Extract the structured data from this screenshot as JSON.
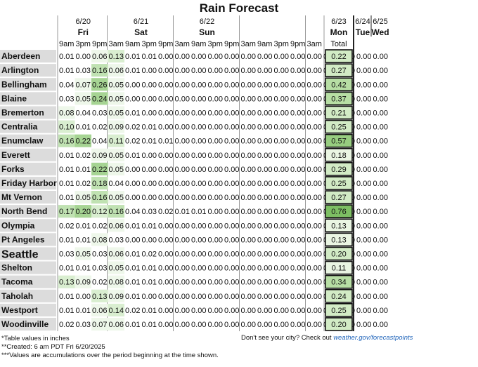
{
  "chart_data": {
    "type": "table",
    "title": "Rain Forecast",
    "days": [
      {
        "date": "6/20",
        "day": "Fri",
        "periods": [
          "9am",
          "3pm",
          "9pm"
        ]
      },
      {
        "date": "6/21",
        "day": "Sat",
        "periods": [
          "3am",
          "9am",
          "3pm",
          "9pm"
        ]
      },
      {
        "date": "6/22",
        "day": "Sun",
        "periods": [
          "3am",
          "9am",
          "3pm",
          "9pm"
        ]
      },
      {
        "date": "",
        "day": "",
        "periods": [
          "3am",
          "9am",
          "3pm",
          "9pm"
        ]
      },
      {
        "date": "",
        "day": "",
        "periods": [
          "3am"
        ]
      }
    ],
    "total_header": {
      "date": "6/23",
      "day": "Mon",
      "label": "Total"
    },
    "extra_days": [
      {
        "date": "6/24",
        "day": "Tue"
      },
      {
        "date": "6/25",
        "day": "Wed"
      }
    ],
    "rows": [
      {
        "city": "Aberdeen",
        "values": [
          "0.01",
          "0.00",
          "0.06",
          "0.13",
          "0.01",
          "0.01",
          "0.00",
          "0.00",
          "0.00",
          "0.00",
          "0.00",
          "0.00",
          "0.00",
          "0.00",
          "0.00",
          "0.00",
          "0.00",
          "0.00",
          "0.00",
          "0.00"
        ],
        "total": "0.22"
      },
      {
        "city": "Arlington",
        "values": [
          "0.01",
          "0.03",
          "0.16",
          "0.06",
          "0.01",
          "0.00",
          "0.00",
          "0.00",
          "0.00",
          "0.00",
          "0.00",
          "0.00",
          "0.00",
          "0.00",
          "0.00",
          "0.00",
          "0.00",
          "0.00",
          "0.00",
          "0.00"
        ],
        "total": "0.27"
      },
      {
        "city": "Bellingham",
        "values": [
          "0.04",
          "0.07",
          "0.26",
          "0.05",
          "0.00",
          "0.00",
          "0.00",
          "0.00",
          "0.00",
          "0.00",
          "0.00",
          "0.00",
          "0.00",
          "0.00",
          "0.00",
          "0.00",
          "0.00",
          "0.00",
          "0.00",
          "0.00"
        ],
        "total": "0.42"
      },
      {
        "city": "Blaine",
        "values": [
          "0.03",
          "0.05",
          "0.24",
          "0.05",
          "0.00",
          "0.00",
          "0.00",
          "0.00",
          "0.00",
          "0.00",
          "0.00",
          "0.00",
          "0.00",
          "0.00",
          "0.00",
          "0.00",
          "0.00",
          "0.00",
          "0.00",
          "0.00"
        ],
        "total": "0.37"
      },
      {
        "city": "Bremerton",
        "values": [
          "0.08",
          "0.04",
          "0.03",
          "0.05",
          "0.01",
          "0.00",
          "0.00",
          "0.00",
          "0.00",
          "0.00",
          "0.00",
          "0.00",
          "0.00",
          "0.00",
          "0.00",
          "0.00",
          "0.00",
          "0.00",
          "0.00",
          "0.00"
        ],
        "total": "0.21"
      },
      {
        "city": "Centralia",
        "values": [
          "0.10",
          "0.01",
          "0.02",
          "0.09",
          "0.02",
          "0.01",
          "0.00",
          "0.00",
          "0.00",
          "0.00",
          "0.00",
          "0.00",
          "0.00",
          "0.00",
          "0.00",
          "0.00",
          "0.00",
          "0.00",
          "0.00",
          "0.00"
        ],
        "total": "0.25"
      },
      {
        "city": "Enumclaw",
        "values": [
          "0.16",
          "0.22",
          "0.04",
          "0.11",
          "0.02",
          "0.01",
          "0.01",
          "0.00",
          "0.00",
          "0.00",
          "0.00",
          "0.00",
          "0.00",
          "0.00",
          "0.00",
          "0.00",
          "0.00",
          "0.00",
          "0.00",
          "0.00"
        ],
        "total": "0.57"
      },
      {
        "city": "Everett",
        "values": [
          "0.01",
          "0.02",
          "0.09",
          "0.05",
          "0.01",
          "0.00",
          "0.00",
          "0.00",
          "0.00",
          "0.00",
          "0.00",
          "0.00",
          "0.00",
          "0.00",
          "0.00",
          "0.00",
          "0.00",
          "0.00",
          "0.00",
          "0.00"
        ],
        "total": "0.18"
      },
      {
        "city": "Forks",
        "values": [
          "0.01",
          "0.01",
          "0.22",
          "0.05",
          "0.00",
          "0.00",
          "0.00",
          "0.00",
          "0.00",
          "0.00",
          "0.00",
          "0.00",
          "0.00",
          "0.00",
          "0.00",
          "0.00",
          "0.00",
          "0.00",
          "0.00",
          "0.00"
        ],
        "total": "0.29"
      },
      {
        "city": "Friday Harbor",
        "values": [
          "0.01",
          "0.02",
          "0.18",
          "0.04",
          "0.00",
          "0.00",
          "0.00",
          "0.00",
          "0.00",
          "0.00",
          "0.00",
          "0.00",
          "0.00",
          "0.00",
          "0.00",
          "0.00",
          "0.00",
          "0.00",
          "0.00",
          "0.00"
        ],
        "total": "0.25"
      },
      {
        "city": "Mt Vernon",
        "values": [
          "0.01",
          "0.05",
          "0.16",
          "0.05",
          "0.00",
          "0.00",
          "0.00",
          "0.00",
          "0.00",
          "0.00",
          "0.00",
          "0.00",
          "0.00",
          "0.00",
          "0.00",
          "0.00",
          "0.00",
          "0.00",
          "0.00",
          "0.00"
        ],
        "total": "0.27"
      },
      {
        "city": "North Bend",
        "values": [
          "0.17",
          "0.20",
          "0.12",
          "0.16",
          "0.04",
          "0.03",
          "0.02",
          "0.01",
          "0.01",
          "0.00",
          "0.00",
          "0.00",
          "0.00",
          "0.00",
          "0.00",
          "0.00",
          "0.00",
          "0.00",
          "0.00",
          "0.00"
        ],
        "total": "0.76"
      },
      {
        "city": "Olympia",
        "values": [
          "0.02",
          "0.01",
          "0.02",
          "0.06",
          "0.01",
          "0.01",
          "0.00",
          "0.00",
          "0.00",
          "0.00",
          "0.00",
          "0.00",
          "0.00",
          "0.00",
          "0.00",
          "0.00",
          "0.00",
          "0.00",
          "0.00",
          "0.00"
        ],
        "total": "0.13"
      },
      {
        "city": "Pt Angeles",
        "values": [
          "0.01",
          "0.01",
          "0.08",
          "0.03",
          "0.00",
          "0.00",
          "0.00",
          "0.00",
          "0.00",
          "0.00",
          "0.00",
          "0.00",
          "0.00",
          "0.00",
          "0.00",
          "0.00",
          "0.00",
          "0.00",
          "0.00",
          "0.00"
        ],
        "total": "0.13"
      },
      {
        "city": "Seattle",
        "values": [
          "0.03",
          "0.05",
          "0.03",
          "0.06",
          "0.01",
          "0.02",
          "0.00",
          "0.00",
          "0.00",
          "0.00",
          "0.00",
          "0.00",
          "0.00",
          "0.00",
          "0.00",
          "0.00",
          "0.00",
          "0.00",
          "0.00",
          "0.00"
        ],
        "total": "0.20",
        "emphasis": true
      },
      {
        "city": "Shelton",
        "values": [
          "0.01",
          "0.01",
          "0.03",
          "0.05",
          "0.01",
          "0.01",
          "0.00",
          "0.00",
          "0.00",
          "0.00",
          "0.00",
          "0.00",
          "0.00",
          "0.00",
          "0.00",
          "0.00",
          "0.00",
          "0.00",
          "0.00",
          "0.00"
        ],
        "total": "0.11"
      },
      {
        "city": "Tacoma",
        "values": [
          "0.13",
          "0.09",
          "0.02",
          "0.08",
          "0.01",
          "0.01",
          "0.00",
          "0.00",
          "0.00",
          "0.00",
          "0.00",
          "0.00",
          "0.00",
          "0.00",
          "0.00",
          "0.00",
          "0.00",
          "0.00",
          "0.00",
          "0.00"
        ],
        "total": "0.34"
      },
      {
        "city": "Taholah",
        "values": [
          "0.01",
          "0.00",
          "0.13",
          "0.09",
          "0.01",
          "0.00",
          "0.00",
          "0.00",
          "0.00",
          "0.00",
          "0.00",
          "0.00",
          "0.00",
          "0.00",
          "0.00",
          "0.00",
          "0.00",
          "0.00",
          "0.00",
          "0.00"
        ],
        "total": "0.24"
      },
      {
        "city": "Westport",
        "values": [
          "0.01",
          "0.01",
          "0.06",
          "0.14",
          "0.02",
          "0.01",
          "0.00",
          "0.00",
          "0.00",
          "0.00",
          "0.00",
          "0.00",
          "0.00",
          "0.00",
          "0.00",
          "0.00",
          "0.00",
          "0.00",
          "0.00",
          "0.00"
        ],
        "total": "0.25"
      },
      {
        "city": "Woodinville",
        "values": [
          "0.02",
          "0.03",
          "0.07",
          "0.06",
          "0.01",
          "0.01",
          "0.00",
          "0.00",
          "0.00",
          "0.00",
          "0.00",
          "0.00",
          "0.00",
          "0.00",
          "0.00",
          "0.00",
          "0.00",
          "0.00",
          "0.00",
          "0.00"
        ],
        "total": "0.20"
      }
    ],
    "colors": {
      "text": "#111111",
      "city_band": "#dcdcdc",
      "value_scale": [
        "#ffffff",
        "#eef7ea",
        "#d9eed0",
        "#c0e2b2",
        "#a6d493"
      ],
      "total_scale": [
        "#eaf5e3",
        "#d2ebc5",
        "#b7dea4",
        "#97cd80",
        "#7dbf63"
      ],
      "divider": "#999999"
    },
    "footer": {
      "note": "*Table values in inches",
      "created": "**Created: 6 am PDT Fri 6/20/2025",
      "accum": "***Values are accumulations over the period beginning at the time shown.",
      "city_prompt": "Don't see your city? Check out",
      "link": "weather.gov/forecastpoints"
    }
  }
}
